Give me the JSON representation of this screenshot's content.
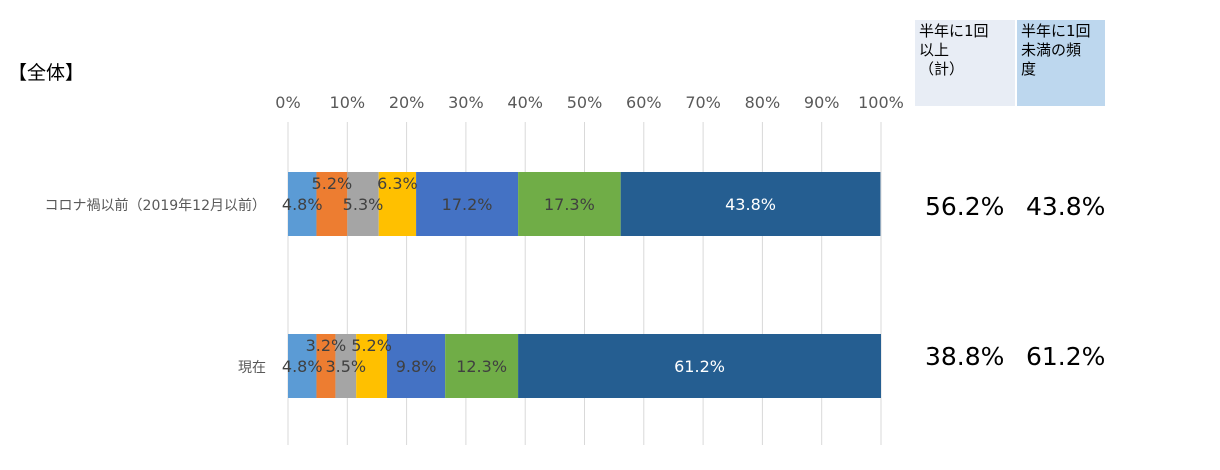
{
  "panel_title": "【全体】",
  "columns": {
    "total_label": "半年に1回\n以上\n（計）",
    "less_label": "半年に1回\n未満の頻\n度"
  },
  "summary": [
    {
      "total": "56.2%",
      "less": "43.8%"
    },
    {
      "total": "38.8%",
      "less": "61.2%"
    }
  ],
  "chart_data": {
    "type": "bar",
    "orientation": "horizontal",
    "stacked": "percent",
    "title": "",
    "xlabel": "",
    "ylabel": "",
    "xlim": [
      0,
      100
    ],
    "x_ticks": [
      "0%",
      "10%",
      "20%",
      "30%",
      "40%",
      "50%",
      "60%",
      "70%",
      "80%",
      "90%",
      "100%"
    ],
    "grid": true,
    "legend": "none",
    "categories": [
      "コロナ禍以前（2019年12月以前）",
      "現在"
    ],
    "series": [
      {
        "color": "#5b9bd5",
        "values": [
          4.8,
          4.8
        ],
        "labels": [
          "4.8%",
          "4.8%"
        ]
      },
      {
        "color": "#ed7d31",
        "values": [
          5.2,
          3.2
        ],
        "labels": [
          "5.2%",
          "3.2%"
        ]
      },
      {
        "color": "#a5a5a5",
        "values": [
          5.3,
          3.5
        ],
        "labels": [
          "5.3%",
          "3.5%"
        ]
      },
      {
        "color": "#ffc000",
        "values": [
          6.3,
          5.2
        ],
        "labels": [
          "6.3%",
          "5.2%"
        ]
      },
      {
        "color": "#4472c4",
        "values": [
          17.2,
          9.8
        ],
        "labels": [
          "17.2%",
          "9.8%"
        ]
      },
      {
        "color": "#70ad47",
        "values": [
          17.3,
          12.3
        ],
        "labels": [
          "17.3%",
          "12.3%"
        ]
      },
      {
        "color": "#255e91",
        "values": [
          43.8,
          61.2
        ],
        "labels": [
          "43.8%",
          "61.2%"
        ]
      }
    ]
  }
}
